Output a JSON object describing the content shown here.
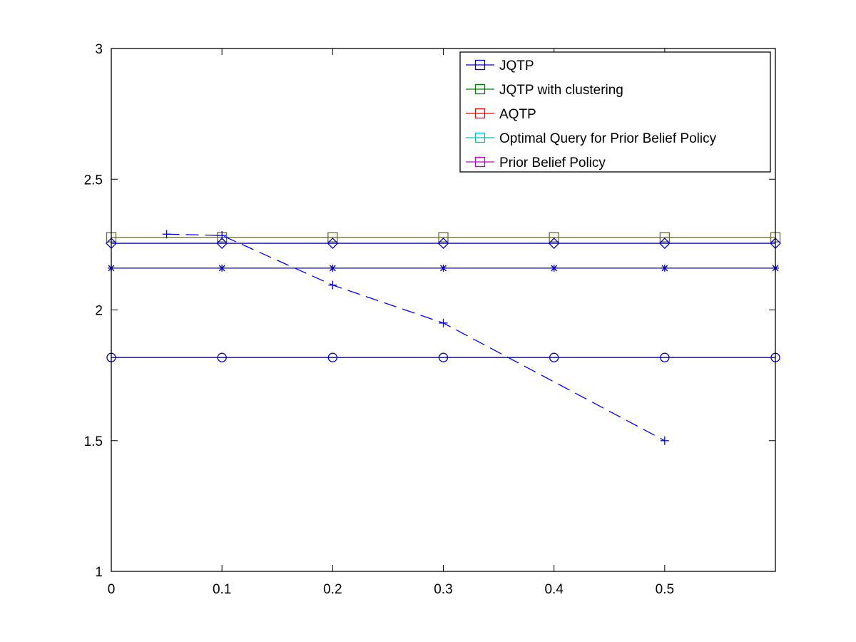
{
  "chart_data": {
    "type": "line",
    "title": "",
    "xlabel": "",
    "ylabel": "",
    "xlim": [
      0,
      0.6
    ],
    "ylim": [
      1,
      3
    ],
    "xticks": [
      0,
      0.1,
      0.2,
      0.3,
      0.4,
      0.5
    ],
    "xtick_labels": [
      "0",
      "0.1",
      "0.2",
      "0.3",
      "0.4",
      "0.5"
    ],
    "yticks": [
      1,
      1.5,
      2,
      2.5,
      3
    ],
    "ytick_labels": [
      "1",
      "1.5",
      "2",
      "2.5",
      "3"
    ],
    "grid": false,
    "legend_position": "top-right",
    "legend": [
      {
        "name": "JQTP",
        "color": "#0000bf"
      },
      {
        "name": "JQTP with clustering",
        "color": "#008000"
      },
      {
        "name": "AQTP",
        "color": "#ff0000"
      },
      {
        "name": "Optimal Query for Prior Belief Policy",
        "color": "#00bfbf"
      },
      {
        "name": "Prior Belief Policy",
        "color": "#bf00bf"
      }
    ],
    "series": [
      {
        "marker": "square",
        "line": "solid",
        "color": "#6b6a3a",
        "x": [
          0,
          0.1,
          0.2,
          0.3,
          0.4,
          0.5,
          0.6
        ],
        "y": [
          2.278,
          2.278,
          2.278,
          2.278,
          2.278,
          2.278,
          2.278
        ]
      },
      {
        "marker": "diamond",
        "line": "solid",
        "color": "#0000bf",
        "x": [
          0,
          0.1,
          0.2,
          0.3,
          0.4,
          0.5,
          0.6
        ],
        "y": [
          2.255,
          2.255,
          2.255,
          2.255,
          2.255,
          2.255,
          2.255
        ]
      },
      {
        "marker": "asterisk",
        "line": "solid",
        "color": "#0000bf",
        "x": [
          0,
          0.1,
          0.2,
          0.3,
          0.4,
          0.5,
          0.6
        ],
        "y": [
          2.16,
          2.16,
          2.16,
          2.16,
          2.16,
          2.16,
          2.16
        ]
      },
      {
        "marker": "circle",
        "line": "solid",
        "color": "#0000bf",
        "x": [
          0,
          0.1,
          0.2,
          0.3,
          0.4,
          0.5,
          0.6
        ],
        "y": [
          1.818,
          1.818,
          1.818,
          1.818,
          1.818,
          1.818,
          1.818
        ]
      },
      {
        "marker": "plus",
        "line": "dashed",
        "color": "#0000ff",
        "x": [
          0.05,
          0.1,
          0.2,
          0.3,
          0.5
        ],
        "y": [
          2.29,
          2.285,
          2.095,
          1.95,
          1.5
        ]
      }
    ]
  }
}
